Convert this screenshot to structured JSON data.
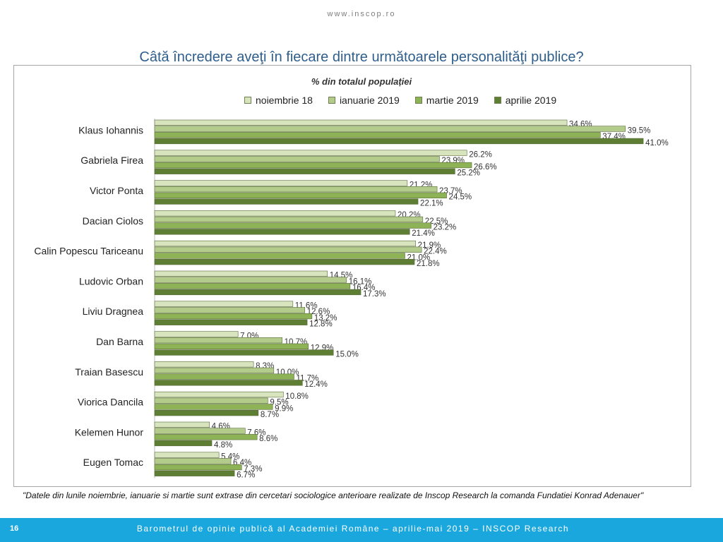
{
  "header": {
    "url": "www.inscop.ro"
  },
  "title": "Câtă încredere aveţi în fiecare dintre următoarele personalităţi publice?",
  "chart_data": {
    "type": "bar",
    "orientation": "horizontal",
    "subtitle": "% din totalul populației",
    "xlim": [
      0,
      45
    ],
    "grid": false,
    "legend_position": "top",
    "categories": [
      "Klaus Iohannis",
      "Gabriela Firea",
      "Victor Ponta",
      "Dacian Ciolos",
      "Calin Popescu Tariceanu",
      "Ludovic Orban",
      "Liviu Dragnea",
      "Dan Barna",
      "Traian Basescu",
      "Viorica Dancila",
      "Kelemen Hunor",
      "Eugen Tomac"
    ],
    "series": [
      {
        "name": "noiembrie 18",
        "color": "#d7e4bd",
        "values": [
          34.6,
          26.2,
          21.2,
          20.2,
          21.9,
          14.5,
          11.6,
          7.0,
          8.3,
          10.8,
          4.6,
          5.4
        ]
      },
      {
        "name": "ianuarie 2019",
        "color": "#b3cc8b",
        "values": [
          39.5,
          23.9,
          23.7,
          22.5,
          22.4,
          16.1,
          12.6,
          10.7,
          10.0,
          9.5,
          7.6,
          6.4
        ]
      },
      {
        "name": "martie 2019",
        "color": "#8db356",
        "values": [
          37.4,
          26.6,
          24.5,
          23.2,
          21.0,
          16.4,
          13.2,
          12.9,
          11.7,
          9.9,
          8.6,
          7.3
        ]
      },
      {
        "name": "aprilie 2019",
        "color": "#5e7e34",
        "values": [
          41.0,
          25.2,
          22.1,
          21.4,
          21.8,
          17.3,
          12.8,
          15.0,
          12.4,
          8.7,
          4.8,
          6.7
        ]
      }
    ]
  },
  "footnote": "\"Datele din lunile noiembrie, ianuarie si martie sunt extrase  din cercetari sociologice anterioare realizate de Inscop Research la comanda Fundatiei Konrad Adenauer\"",
  "footer": {
    "page_number": "16",
    "text": "Barometrul de opinie publică al Academiei Române – aprilie-mai 2019 – INSCOP Research"
  }
}
